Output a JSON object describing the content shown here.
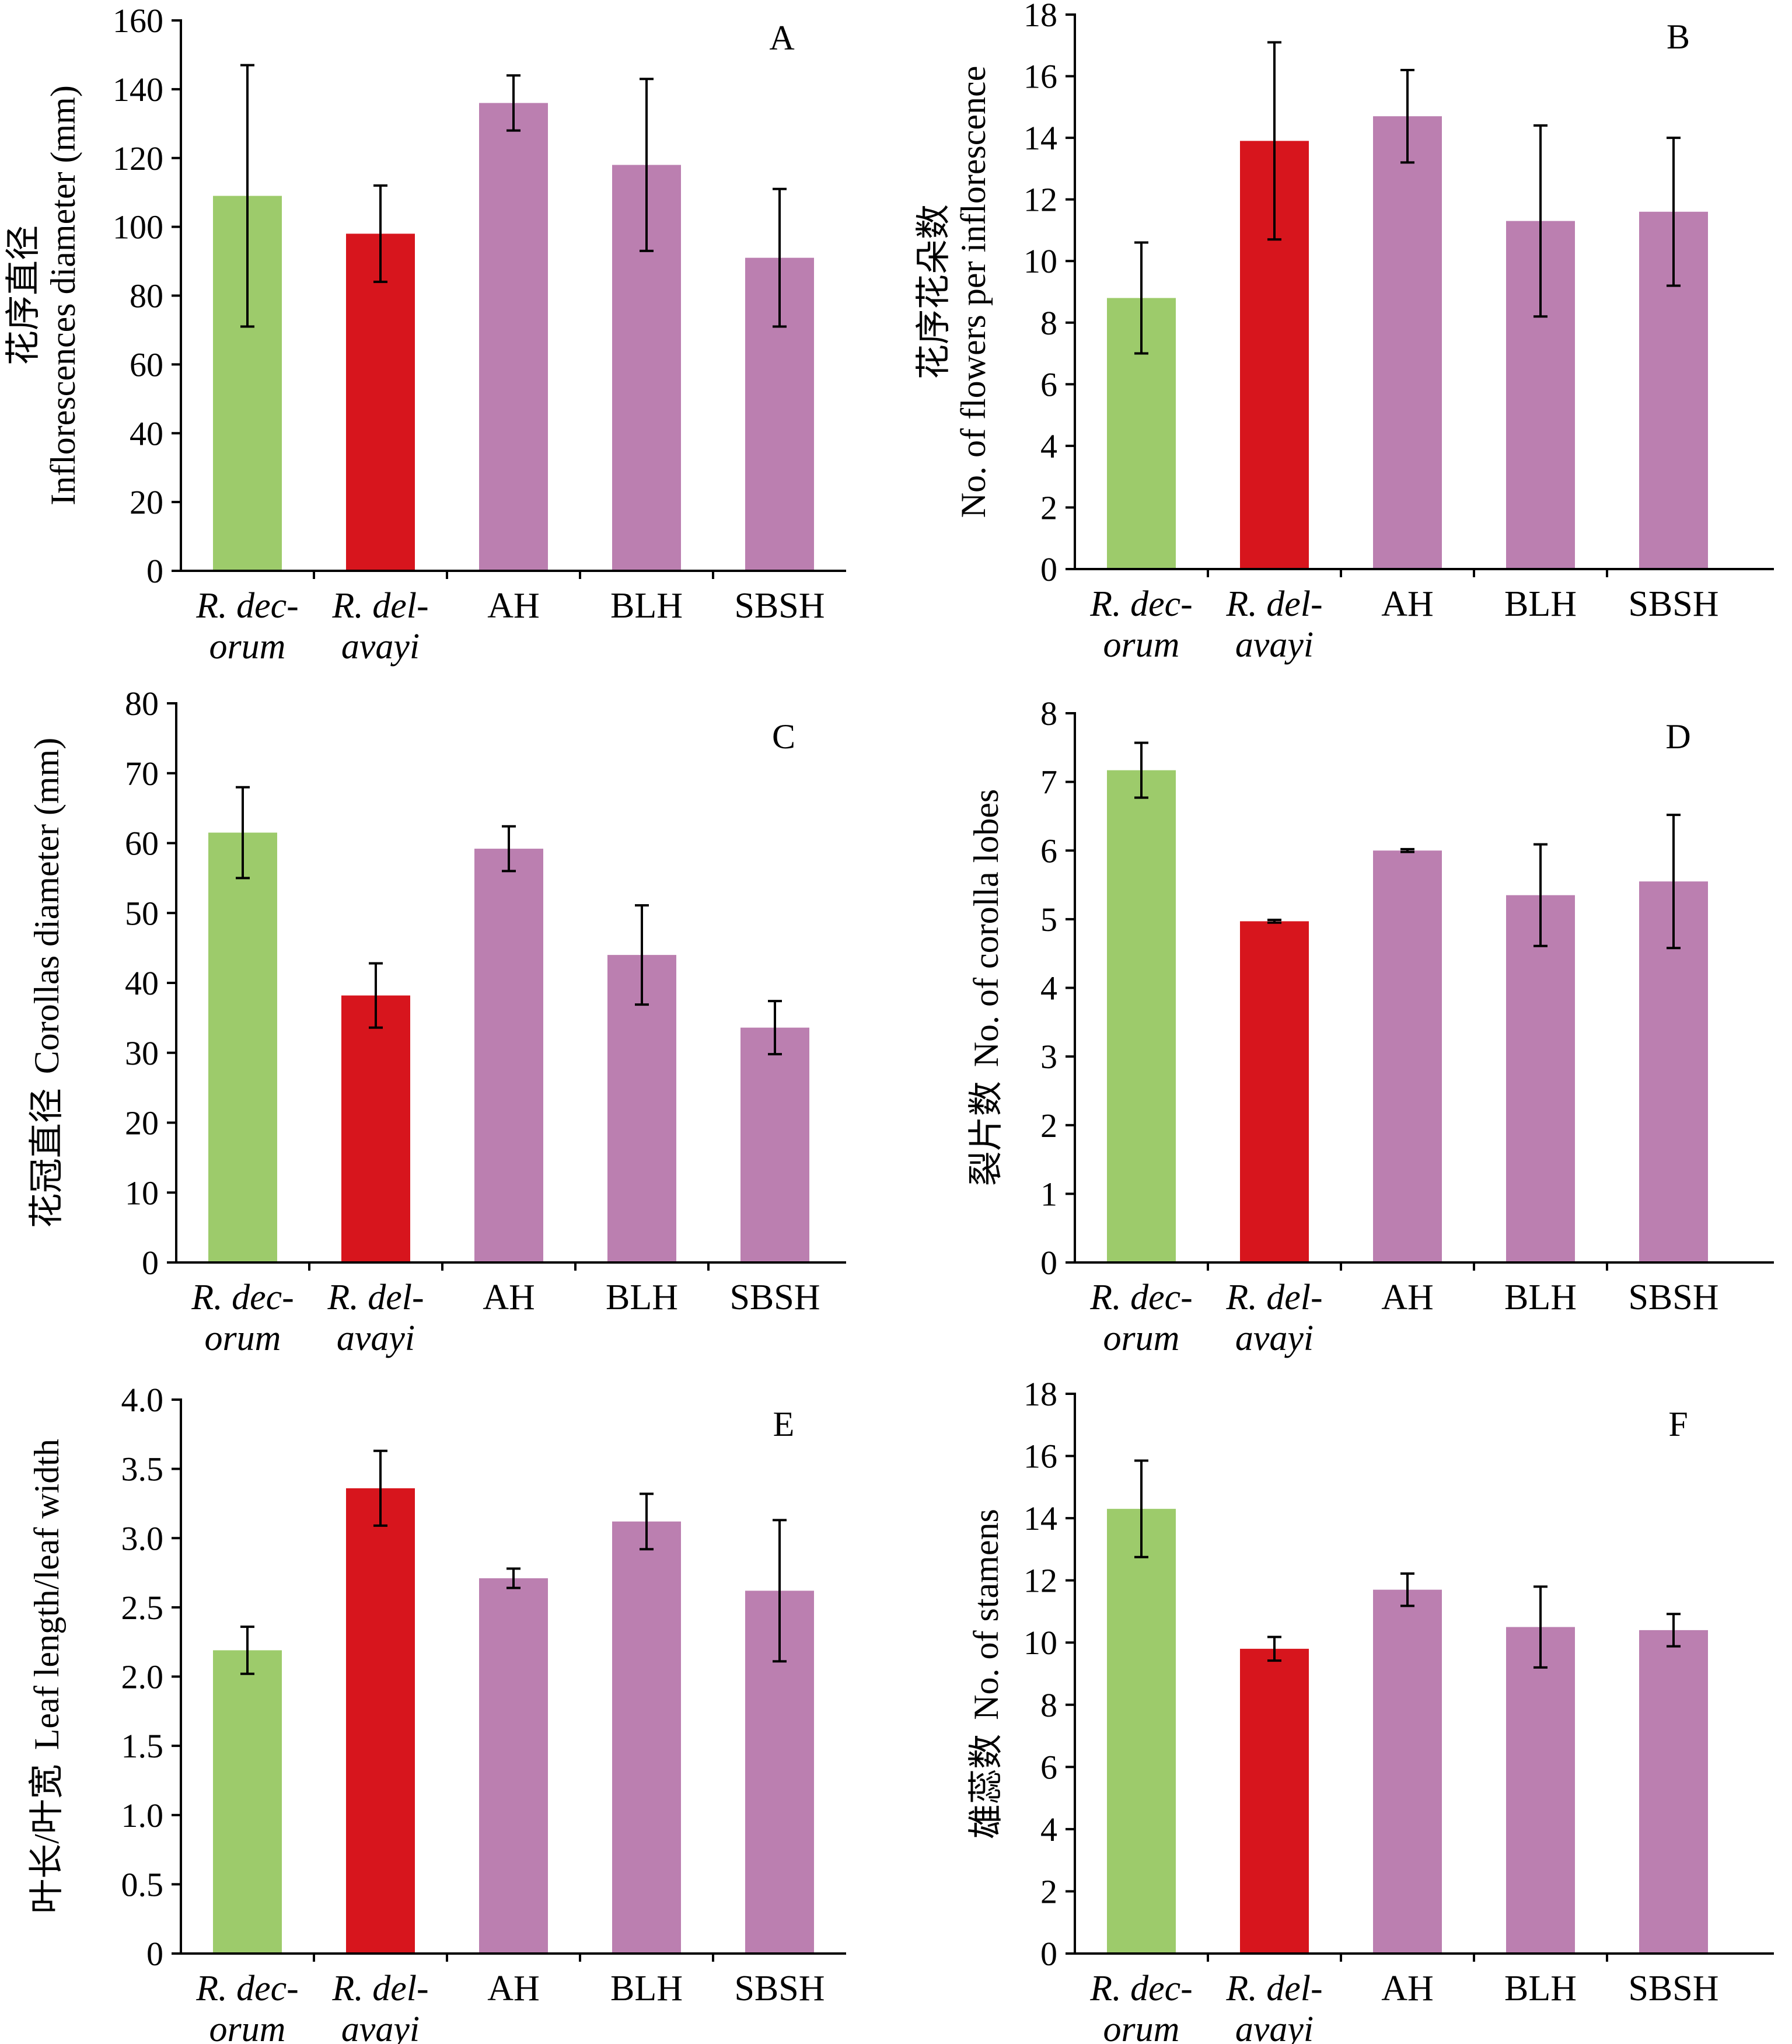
{
  "colors": {
    "rdecorum": "#9dcb6b",
    "rdelavayi": "#d7151d",
    "hybrid": "#bb7fb0"
  },
  "chart_data": [
    {
      "type": "bar",
      "panel": "A",
      "ylabel_zh": "花序直径",
      "ylabel_en": "Inflorescences diameter (mm)",
      "categories": [
        [
          "R. dec-",
          "orum"
        ],
        [
          "R. del-",
          "avayi"
        ],
        [
          "AH"
        ],
        [
          "BLH"
        ],
        [
          "SBSH"
        ]
      ],
      "values": [
        109,
        98,
        136,
        118,
        91
      ],
      "errors": [
        38,
        14,
        8,
        25,
        20
      ],
      "ylim": [
        0,
        160
      ],
      "yticks": [
        0,
        20,
        40,
        60,
        80,
        100,
        120,
        140,
        160
      ],
      "ytick_labels": [
        "0",
        "20",
        "40",
        "60",
        "80",
        "100",
        "120",
        "140",
        "160"
      ]
    },
    {
      "type": "bar",
      "panel": "B",
      "ylabel_zh": "花序花朵数",
      "ylabel_en": "No. of flowers per inflorescence",
      "categories": [
        [
          "R. dec-",
          "orum"
        ],
        [
          "R. del-",
          "avayi"
        ],
        [
          "AH"
        ],
        [
          "BLH"
        ],
        [
          "SBSH"
        ]
      ],
      "values": [
        8.8,
        13.9,
        14.7,
        11.3,
        11.6
      ],
      "errors": [
        1.8,
        3.2,
        1.5,
        3.1,
        2.4
      ],
      "ylim": [
        0,
        18
      ],
      "yticks": [
        0,
        2,
        4,
        6,
        8,
        10,
        12,
        14,
        16,
        18
      ],
      "ytick_labels": [
        "0",
        "2",
        "4",
        "6",
        "8",
        "10",
        "12",
        "14",
        "16",
        "18"
      ]
    },
    {
      "type": "bar",
      "panel": "C",
      "ylabel_zh": "花冠直径",
      "ylabel_en": "Corollas diameter (mm)",
      "categories": [
        [
          "R. dec-",
          "orum"
        ],
        [
          "R. del-",
          "avayi"
        ],
        [
          "AH"
        ],
        [
          "BLH"
        ],
        [
          "SBSH"
        ]
      ],
      "values": [
        61.5,
        38.2,
        59.2,
        44,
        33.6
      ],
      "errors": [
        6.5,
        4.6,
        3.2,
        7.1,
        3.8
      ],
      "ylim": [
        0,
        80
      ],
      "yticks": [
        0,
        10,
        20,
        30,
        40,
        50,
        60,
        70,
        80
      ],
      "ytick_labels": [
        "0",
        "10",
        "20",
        "30",
        "40",
        "50",
        "60",
        "70",
        "80"
      ]
    },
    {
      "type": "bar",
      "panel": "D",
      "ylabel_zh": "裂片数",
      "ylabel_en": "No. of corolla lobes",
      "categories": [
        [
          "R. dec-",
          "orum"
        ],
        [
          "R. del-",
          "avayi"
        ],
        [
          "AH"
        ],
        [
          "BLH"
        ],
        [
          "SBSH"
        ]
      ],
      "values": [
        7.17,
        4.97,
        6,
        5.35,
        5.55
      ],
      "errors": [
        0.4,
        0.02,
        0.02,
        0.74,
        0.97
      ],
      "ylim": [
        0,
        8
      ],
      "yticks": [
        0,
        1,
        2,
        3,
        4,
        5,
        6,
        7,
        8
      ],
      "ytick_labels": [
        "0",
        "1",
        "2",
        "3",
        "4",
        "5",
        "6",
        "7",
        "8"
      ]
    },
    {
      "type": "bar",
      "panel": "E",
      "ylabel_zh": "叶长/叶宽",
      "ylabel_en": "Leaf length/leaf width",
      "categories": [
        [
          "R. dec-",
          "orum"
        ],
        [
          "R. del-",
          "avayi"
        ],
        [
          "AH"
        ],
        [
          "BLH"
        ],
        [
          "SBSH"
        ]
      ],
      "values": [
        2.19,
        3.36,
        2.71,
        3.12,
        2.62
      ],
      "errors": [
        0.17,
        0.27,
        0.07,
        0.2,
        0.51
      ],
      "ylim": [
        0,
        4
      ],
      "yticks": [
        0,
        0.5,
        1,
        1.5,
        2,
        2.5,
        3,
        3.5,
        4
      ],
      "ytick_labels": [
        "0",
        "0.5",
        "1.0",
        "1.5",
        "2.0",
        "2.5",
        "3.0",
        "3.5",
        "4.0"
      ]
    },
    {
      "type": "bar",
      "panel": "F",
      "ylabel_zh": "雄蕊数",
      "ylabel_en": "No. of stamens",
      "categories": [
        [
          "R. dec-",
          "orum"
        ],
        [
          "R. del-",
          "avayi"
        ],
        [
          "AH"
        ],
        [
          "BLH"
        ],
        [
          "SBSH"
        ]
      ],
      "values": [
        14.3,
        9.8,
        11.7,
        10.5,
        10.4
      ],
      "errors": [
        1.55,
        0.38,
        0.52,
        1.3,
        0.52
      ],
      "ylim": [
        0,
        18
      ],
      "yticks": [
        0,
        2,
        4,
        6,
        8,
        10,
        12,
        14,
        16,
        18
      ],
      "ytick_labels": [
        "0",
        "2",
        "4",
        "6",
        "8",
        "10",
        "12",
        "14",
        "16",
        "18"
      ]
    }
  ]
}
